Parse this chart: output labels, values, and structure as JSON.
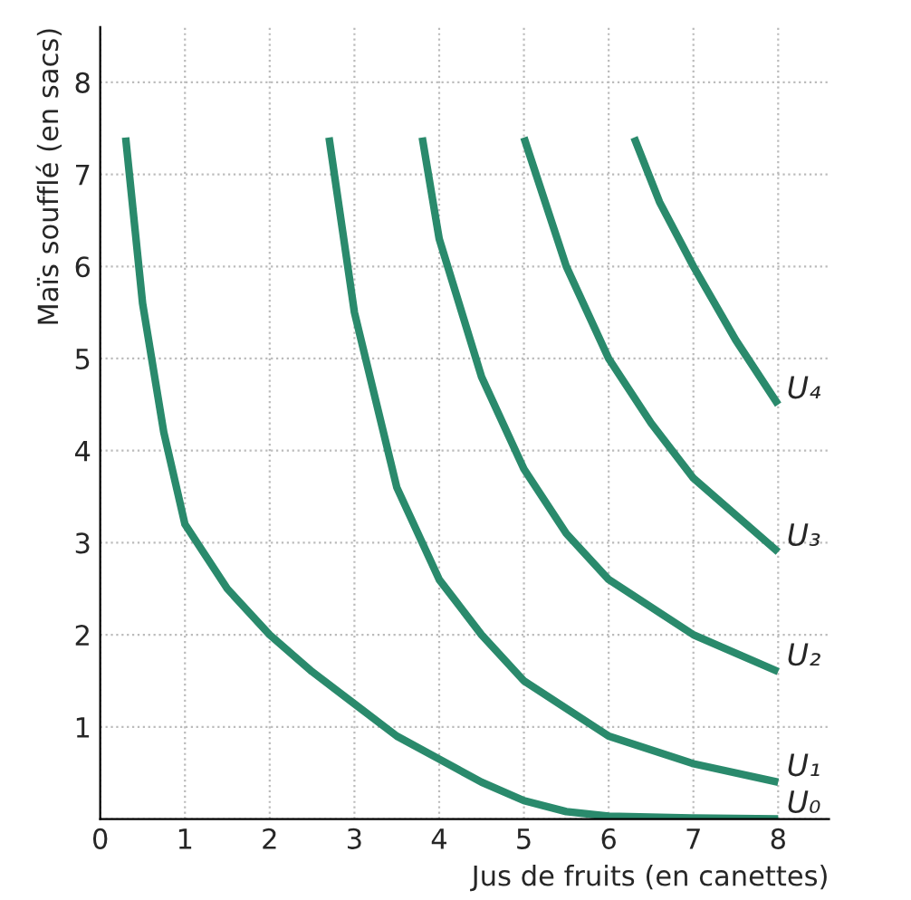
{
  "chart_data": {
    "type": "line",
    "xlabel": "Jus de fruits (en canettes)",
    "ylabel": "Maïs soufflé (en sacs)",
    "xlim": [
      0,
      8.6
    ],
    "ylim": [
      0,
      8.6
    ],
    "xticks": [
      0,
      1,
      2,
      3,
      4,
      5,
      6,
      7,
      8
    ],
    "yticks": [
      {
        "value": 0,
        "label": null
      },
      1,
      2,
      3,
      4,
      5,
      6,
      7,
      8
    ],
    "grid": true,
    "legend": false,
    "marker": "none",
    "line_style": "solid",
    "series": [
      {
        "name": "U₀",
        "color": "#2a8a6c",
        "x": [
          0.3,
          0.5,
          0.75,
          1,
          1.5,
          2,
          2.5,
          3,
          3.5,
          4,
          4.5,
          5,
          5.5,
          6,
          7,
          8
        ],
        "values": [
          7.4,
          5.6,
          4.2,
          3.2,
          2.5,
          2.0,
          1.6,
          1.25,
          0.9,
          0.65,
          0.4,
          0.2,
          0.08,
          0.03,
          0.01,
          0.0
        ]
      },
      {
        "name": "U₁",
        "color": "#2a8a6c",
        "x": [
          2.7,
          3,
          3.5,
          4,
          4.5,
          5,
          5.5,
          6,
          7,
          8
        ],
        "values": [
          7.4,
          5.5,
          3.6,
          2.6,
          2.0,
          1.5,
          1.2,
          0.9,
          0.6,
          0.4
        ]
      },
      {
        "name": "U₂",
        "color": "#2a8a6c",
        "x": [
          3.8,
          4,
          4.5,
          5,
          5.5,
          6,
          7,
          8
        ],
        "values": [
          7.4,
          6.3,
          4.8,
          3.8,
          3.1,
          2.6,
          2.0,
          1.6
        ]
      },
      {
        "name": "U₃",
        "color": "#2a8a6c",
        "x": [
          5.0,
          5.5,
          6,
          6.5,
          7,
          7.5,
          8
        ],
        "values": [
          7.4,
          6.0,
          5.0,
          4.3,
          3.7,
          3.3,
          2.9
        ]
      },
      {
        "name": "U₄",
        "color": "#2a8a6c",
        "x": [
          6.3,
          6.6,
          7,
          7.5,
          8
        ],
        "values": [
          7.4,
          6.7,
          6.0,
          5.2,
          4.5
        ]
      }
    ]
  }
}
